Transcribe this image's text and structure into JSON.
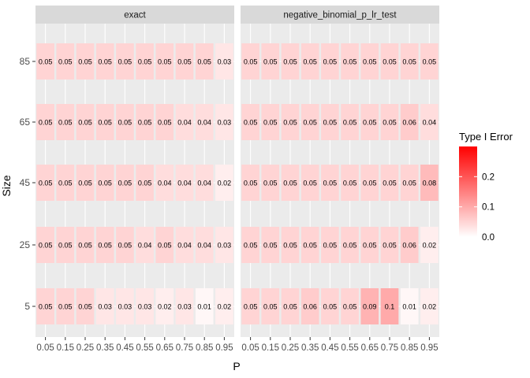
{
  "chart_data": {
    "type": "heatmap",
    "title": "",
    "xlabel": "P",
    "ylabel": "Size",
    "x_categories": [
      "0.05",
      "0.15",
      "0.25",
      "0.35",
      "0.45",
      "0.55",
      "0.65",
      "0.75",
      "0.85",
      "0.95"
    ],
    "y_categories": [
      "85",
      "65",
      "45",
      "25",
      "5"
    ],
    "grid": true,
    "legend": {
      "title": "Type I Error",
      "placement": "right",
      "ticks": [
        "0.2",
        "0.1",
        "0.0"
      ],
      "tick_values": [
        0.2,
        0.1,
        0.0
      ],
      "range": [
        0,
        0.3
      ],
      "color_low": "#ffffff",
      "color_high": "#ff0000"
    },
    "facets": [
      {
        "title": "exact",
        "values": [
          [
            0.05,
            0.05,
            0.05,
            0.05,
            0.05,
            0.05,
            0.05,
            0.05,
            0.05,
            0.03
          ],
          [
            0.05,
            0.05,
            0.05,
            0.05,
            0.05,
            0.05,
            0.05,
            0.04,
            0.04,
            0.03
          ],
          [
            0.05,
            0.05,
            0.05,
            0.05,
            0.05,
            0.05,
            0.04,
            0.04,
            0.04,
            0.02
          ],
          [
            0.05,
            0.05,
            0.05,
            0.05,
            0.05,
            0.04,
            0.05,
            0.04,
            0.04,
            0.03
          ],
          [
            0.05,
            0.05,
            0.05,
            0.03,
            0.03,
            0.03,
            0.02,
            0.03,
            0.01,
            0.02
          ]
        ],
        "labels": [
          [
            "0.05",
            "0.05",
            "0.05",
            "0.05",
            "0.05",
            "0.05",
            "0.05",
            "0.05",
            "0.05",
            "0.03"
          ],
          [
            "0.05",
            "0.05",
            "0.05",
            "0.05",
            "0.05",
            "0.05",
            "0.05",
            "0.04",
            "0.04",
            "0.03"
          ],
          [
            "0.05",
            "0.05",
            "0.05",
            "0.05",
            "0.05",
            "0.05",
            "0.04",
            "0.04",
            "0.04",
            "0.02"
          ],
          [
            "0.05",
            "0.05",
            "0.05",
            "0.05",
            "0.05",
            "0.04",
            "0.05",
            "0.04",
            "0.04",
            "0.03"
          ],
          [
            "0.05",
            "0.05",
            "0.05",
            "0.03",
            "0.03",
            "0.03",
            "0.02",
            "0.03",
            "0.01",
            "0.02"
          ]
        ]
      },
      {
        "title": "negative_binomial_p_lr_test",
        "values": [
          [
            0.05,
            0.05,
            0.05,
            0.05,
            0.05,
            0.05,
            0.05,
            0.05,
            0.05,
            0.05
          ],
          [
            0.05,
            0.05,
            0.05,
            0.05,
            0.05,
            0.05,
            0.05,
            0.05,
            0.06,
            0.04
          ],
          [
            0.05,
            0.05,
            0.05,
            0.05,
            0.05,
            0.05,
            0.05,
            0.05,
            0.05,
            0.08
          ],
          [
            0.05,
            0.05,
            0.05,
            0.05,
            0.05,
            0.05,
            0.05,
            0.05,
            0.06,
            0.02
          ],
          [
            0.05,
            0.05,
            0.05,
            0.06,
            0.05,
            0.05,
            0.09,
            0.1,
            0.01,
            0.02
          ]
        ],
        "labels": [
          [
            "0.05",
            "0.05",
            "0.05",
            "0.05",
            "0.05",
            "0.05",
            "0.05",
            "0.05",
            "0.05",
            "0.05"
          ],
          [
            "0.05",
            "0.05",
            "0.05",
            "0.05",
            "0.05",
            "0.05",
            "0.05",
            "0.05",
            "0.06",
            "0.04"
          ],
          [
            "0.05",
            "0.05",
            "0.05",
            "0.05",
            "0.05",
            "0.05",
            "0.05",
            "0.05",
            "0.05",
            "0.08"
          ],
          [
            "0.05",
            "0.05",
            "0.05",
            "0.05",
            "0.05",
            "0.05",
            "0.05",
            "0.05",
            "0.06",
            "0.02"
          ],
          [
            "0.05",
            "0.05",
            "0.05",
            "0.06",
            "0.05",
            "0.05",
            "0.09",
            "0.1",
            "0.01",
            "0.02"
          ]
        ]
      }
    ]
  }
}
